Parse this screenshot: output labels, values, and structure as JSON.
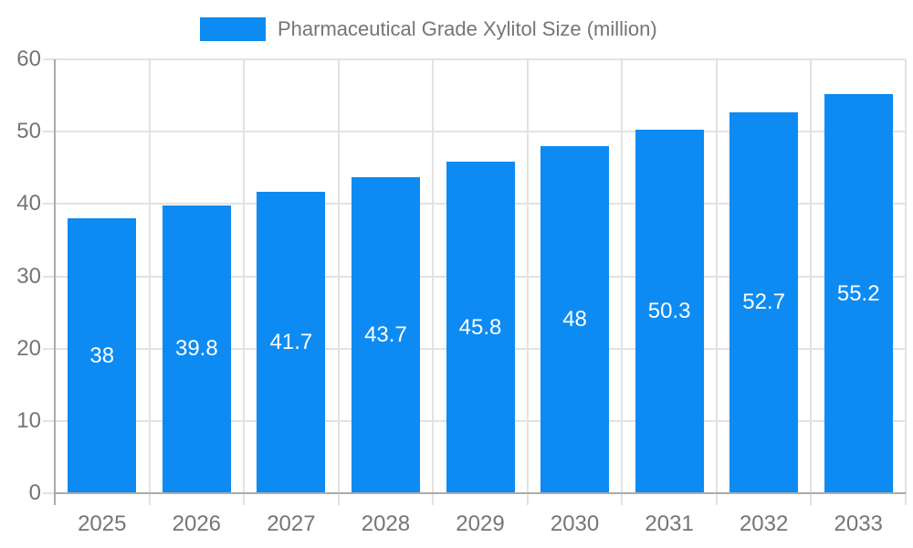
{
  "chart_data": {
    "type": "bar",
    "title": "Pharmaceutical Grade Xylitol Size (million)",
    "legend": {
      "label": "Pharmaceutical Grade Xylitol Size (million)",
      "position": "top-center"
    },
    "categories": [
      "2025",
      "2026",
      "2027",
      "2028",
      "2029",
      "2030",
      "2031",
      "2032",
      "2033"
    ],
    "series": [
      {
        "name": "Pharmaceutical Grade Xylitol Size (million)",
        "values": [
          38,
          39.8,
          41.7,
          43.7,
          45.8,
          48,
          50.3,
          52.7,
          55.2
        ],
        "value_labels": [
          "38",
          "39.8",
          "41.7",
          "43.7",
          "45.8",
          "48",
          "50.3",
          "52.7",
          "55.2"
        ]
      }
    ],
    "xlabel": "",
    "ylabel": "",
    "ylim": [
      0,
      60
    ],
    "yticks": [
      0,
      10,
      20,
      30,
      40,
      50,
      60
    ],
    "grid": {
      "horizontal": true,
      "vertical": true
    },
    "legend_position": "top",
    "colors": {
      "bar": "#0D8BF2",
      "grid": "#E2E2E2",
      "axis": "#ABABAB",
      "tick_text": "#757575",
      "legend_text": "#757575",
      "value_label_text": "#FFFFFF",
      "background": "#FFFFFF"
    }
  }
}
